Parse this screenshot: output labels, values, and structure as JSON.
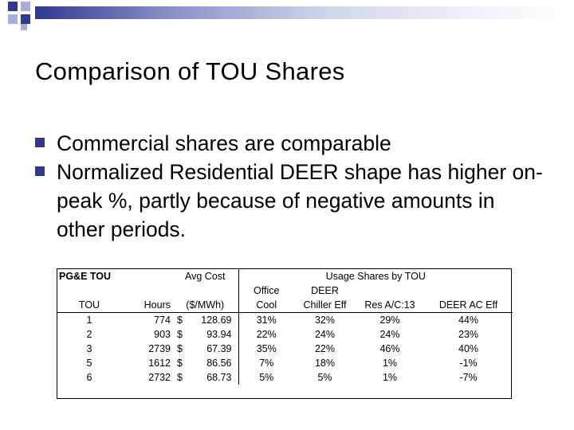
{
  "slide": {
    "title": "Comparison of TOU Shares",
    "bullets": [
      "Commercial shares are comparable",
      "Normalized Residential DEER shape has higher on-peak %, partly because of negative amounts in other periods."
    ]
  },
  "table": {
    "header_row1": {
      "left": "PG&E TOU",
      "avg_cost": "Avg Cost",
      "usage": "Usage Shares by TOU"
    },
    "header_row2": {
      "office": "Office",
      "deer": "DEER"
    },
    "header_row3": {
      "tou": "TOU",
      "hours": "Hours",
      "cost_unit": "($/MWh)",
      "office_cool": "Cool",
      "deer_chiller": "Chiller Eff",
      "res_ac": "Res A/C:13",
      "deer_ac": "DEER AC Eff"
    },
    "rows": [
      {
        "tou": "1",
        "hours": "774",
        "cur": "$",
        "cost": "128.69",
        "office": "31%",
        "deer_chiller": "32%",
        "res_ac": "29%",
        "deer_ac": "44%"
      },
      {
        "tou": "2",
        "hours": "903",
        "cur": "$",
        "cost": "93.94",
        "office": "22%",
        "deer_chiller": "24%",
        "res_ac": "24%",
        "deer_ac": "23%"
      },
      {
        "tou": "3",
        "hours": "2739",
        "cur": "$",
        "cost": "67.39",
        "office": "35%",
        "deer_chiller": "22%",
        "res_ac": "46%",
        "deer_ac": "40%"
      },
      {
        "tou": "5",
        "hours": "1612",
        "cur": "$",
        "cost": "86.56",
        "office": "7%",
        "deer_chiller": "18%",
        "res_ac": "1%",
        "deer_ac": "-1%"
      },
      {
        "tou": "6",
        "hours": "2732",
        "cur": "$",
        "cost": "68.73",
        "office": "5%",
        "deer_chiller": "5%",
        "res_ac": "1%",
        "deer_ac": "-7%"
      }
    ]
  },
  "colors": {
    "accent": "#2f3a8f",
    "accent_light": "#a6abd8"
  }
}
